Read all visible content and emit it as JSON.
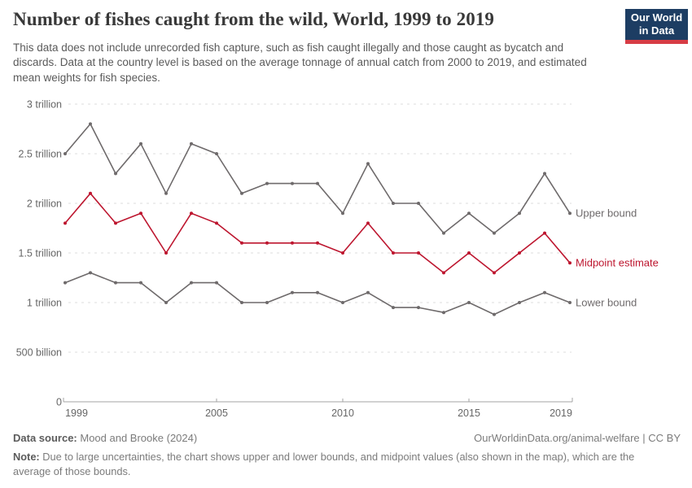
{
  "header": {
    "title": "Number of fishes caught from the wild, World, 1999 to 2019",
    "subtitle": "This data does not include unrecorded fish capture, such as fish caught illegally and those caught as bycatch and discards. Data at the country level is based on the average tonnage of annual catch from 2000 to 2019, and estimated mean weights for fish species.",
    "logo": {
      "line1": "Our World",
      "line2": "in Data",
      "bg_color": "#1d3d63",
      "accent_color": "#d73c45"
    }
  },
  "chart_data": {
    "type": "line",
    "title": "Number of fishes caught from the wild, World, 1999 to 2019",
    "value_scale": "trillions of fishes",
    "x": [
      1999,
      2000,
      2001,
      2002,
      2003,
      2004,
      2005,
      2006,
      2007,
      2008,
      2009,
      2010,
      2011,
      2012,
      2013,
      2014,
      2015,
      2016,
      2017,
      2018,
      2019
    ],
    "series": [
      {
        "name": "Upper bound",
        "color": "#6e6a6b",
        "values": [
          2.5,
          2.8,
          2.3,
          2.6,
          2.1,
          2.6,
          2.5,
          2.1,
          2.2,
          2.2,
          2.2,
          1.9,
          2.4,
          2.0,
          2.0,
          1.7,
          1.9,
          1.7,
          1.9,
          2.3,
          1.9
        ]
      },
      {
        "name": "Midpoint estimate",
        "color": "#bd162f",
        "values": [
          1.8,
          2.1,
          1.8,
          1.9,
          1.5,
          1.9,
          1.8,
          1.6,
          1.6,
          1.6,
          1.6,
          1.5,
          1.8,
          1.5,
          1.5,
          1.3,
          1.5,
          1.3,
          1.5,
          1.7,
          1.4
        ]
      },
      {
        "name": "Lower bound",
        "color": "#6e6a6b",
        "values": [
          1.2,
          1.3,
          1.2,
          1.2,
          1.0,
          1.2,
          1.2,
          1.0,
          1.0,
          1.1,
          1.1,
          1.0,
          1.1,
          0.95,
          0.95,
          0.9,
          1.0,
          0.88,
          1.0,
          1.1,
          1.0
        ]
      }
    ],
    "yticks": [
      {
        "value": 0,
        "label": "0"
      },
      {
        "value": 0.5,
        "label": "500 billion"
      },
      {
        "value": 1,
        "label": "1 trillion"
      },
      {
        "value": 1.5,
        "label": "1.5 trillion"
      },
      {
        "value": 2,
        "label": "2 trillion"
      },
      {
        "value": 2.5,
        "label": "2.5 trillion"
      },
      {
        "value": 3,
        "label": "3 trillion"
      }
    ],
    "xticks": [
      1999,
      2005,
      2010,
      2015,
      2019
    ],
    "ylim": [
      0,
      3
    ],
    "xlim": [
      1999,
      2019
    ],
    "grid": "horizontal-dashed",
    "legend_position": "line-end-labels",
    "colors": {
      "grid": "#dcdcdc",
      "axis": "#a3a3a3",
      "tick_text": "#666666"
    }
  },
  "footer": {
    "source_label": "Data source:",
    "source_value": "Mood and Brooke (2024)",
    "link": "OurWorldinData.org/animal-welfare | CC BY",
    "note_label": "Note:",
    "note_text": "Due to large uncertainties, the chart shows upper and lower bounds, and midpoint values (also shown in the map), which are the average of those bounds."
  }
}
